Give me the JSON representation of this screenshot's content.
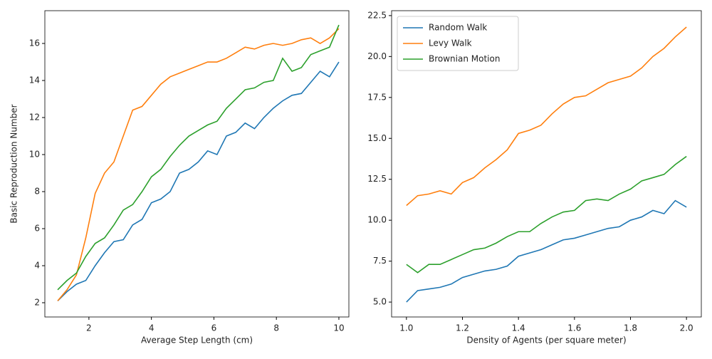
{
  "chart_data": [
    {
      "type": "line",
      "xlabel": "Average Step Length (cm)",
      "ylabel": "Basic Reproduction Number",
      "x": [
        1,
        1.3,
        1.6,
        1.9,
        2.2,
        2.5,
        2.8,
        3.1,
        3.4,
        3.7,
        4.0,
        4.3,
        4.6,
        4.9,
        5.2,
        5.5,
        5.8,
        6.1,
        6.4,
        6.7,
        7.0,
        7.3,
        7.6,
        7.9,
        8.2,
        8.5,
        8.8,
        9.1,
        9.4,
        9.7,
        10.0
      ],
      "series": [
        {
          "name": "Random Walk",
          "color": "#1f77b4",
          "values": [
            2.1,
            2.6,
            3.0,
            3.2,
            4.0,
            4.7,
            5.3,
            5.4,
            6.2,
            6.5,
            7.4,
            7.6,
            8.0,
            9.0,
            9.2,
            9.6,
            10.2,
            10.0,
            11.0,
            11.2,
            11.7,
            11.4,
            12.0,
            12.5,
            12.9,
            13.2,
            13.3,
            13.9,
            14.5,
            14.2,
            15.0
          ]
        },
        {
          "name": "Levy Walk",
          "color": "#ff7f0e",
          "values": [
            2.1,
            2.7,
            3.5,
            5.5,
            7.9,
            9.0,
            9.6,
            11.0,
            12.4,
            12.6,
            13.2,
            13.8,
            14.2,
            14.4,
            14.6,
            14.8,
            15.0,
            15.0,
            15.2,
            15.5,
            15.8,
            15.7,
            15.9,
            16.0,
            15.9,
            16.0,
            16.2,
            16.3,
            16.0,
            16.3,
            16.8
          ]
        },
        {
          "name": "Brownian Motion",
          "color": "#2ca02c",
          "values": [
            2.7,
            3.2,
            3.6,
            4.5,
            5.2,
            5.5,
            6.2,
            7.0,
            7.3,
            8.0,
            8.8,
            9.2,
            9.9,
            10.5,
            11.0,
            11.3,
            11.6,
            11.8,
            12.5,
            13.0,
            13.5,
            13.6,
            13.9,
            14.0,
            15.2,
            14.5,
            14.7,
            15.4,
            15.6,
            15.8,
            17.0
          ]
        }
      ],
      "xlim": [
        0.59,
        10.32
      ],
      "xticks": [
        2,
        4,
        6,
        8,
        10
      ],
      "ylim": [
        1.23,
        17.77
      ],
      "yticks": [
        2,
        4,
        6,
        8,
        10,
        12,
        14,
        16
      ]
    },
    {
      "type": "line",
      "xlabel": "Density of Agents (per square meter)",
      "legend": "upper left",
      "x": [
        1.0,
        1.04,
        1.08,
        1.12,
        1.16,
        1.2,
        1.24,
        1.28,
        1.32,
        1.36,
        1.4,
        1.44,
        1.48,
        1.52,
        1.56,
        1.6,
        1.64,
        1.68,
        1.72,
        1.76,
        1.8,
        1.84,
        1.88,
        1.92,
        1.96,
        2.0
      ],
      "series": [
        {
          "name": "Random Walk",
          "color": "#1f77b4",
          "values": [
            5.0,
            5.7,
            5.8,
            5.9,
            6.1,
            6.5,
            6.7,
            6.9,
            7.0,
            7.2,
            7.8,
            8.0,
            8.2,
            8.5,
            8.8,
            8.9,
            9.1,
            9.3,
            9.5,
            9.6,
            10.0,
            10.2,
            10.6,
            10.4,
            11.2,
            10.8
          ]
        },
        {
          "name": "Levy Walk",
          "color": "#ff7f0e",
          "values": [
            10.9,
            11.5,
            11.6,
            11.8,
            11.6,
            12.3,
            12.6,
            13.2,
            13.7,
            14.3,
            15.3,
            15.5,
            15.8,
            16.5,
            17.1,
            17.5,
            17.6,
            18.0,
            18.4,
            18.6,
            18.8,
            19.3,
            20.0,
            20.5,
            21.2,
            21.8
          ]
        },
        {
          "name": "Brownian Motion",
          "color": "#2ca02c",
          "values": [
            7.3,
            6.8,
            7.3,
            7.3,
            7.6,
            7.9,
            8.2,
            8.3,
            8.6,
            9.0,
            9.3,
            9.3,
            9.8,
            10.2,
            10.5,
            10.6,
            11.2,
            11.3,
            11.2,
            11.6,
            11.9,
            12.4,
            12.6,
            12.8,
            13.4,
            13.9
          ]
        }
      ],
      "xlim": [
        0.947,
        2.053
      ],
      "xticks": [
        {
          "value": 1.0,
          "label": "1.0"
        },
        1.2,
        1.4,
        1.6,
        1.8,
        {
          "value": 2.0,
          "label": "2.0"
        }
      ],
      "ylim": [
        4.09,
        22.8
      ],
      "yticks": [
        {
          "value": 5.0,
          "label": "5.0"
        },
        7.5,
        {
          "value": 10.0,
          "label": "10.0"
        },
        12.5,
        {
          "value": 15.0,
          "label": "15.0"
        },
        17.5,
        {
          "value": 20.0,
          "label": "20.0"
        },
        22.5
      ]
    }
  ]
}
